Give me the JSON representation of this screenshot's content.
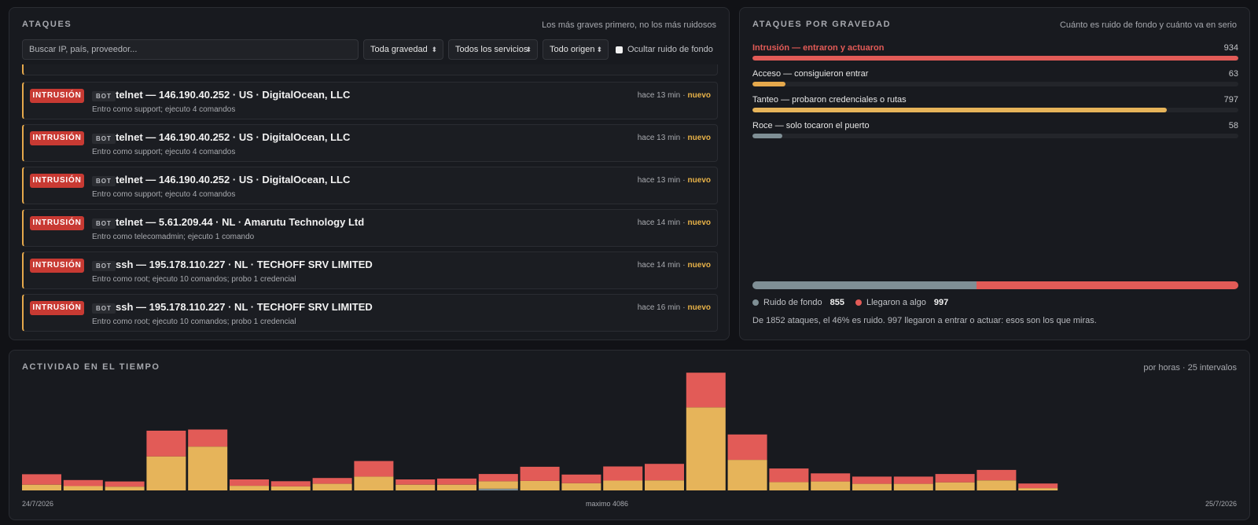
{
  "attacks": {
    "title": "ATAQUES",
    "subtitle": "Los más graves primero, no los más ruidosos",
    "search": {
      "placeholder": "Buscar IP, país, proveedor..."
    },
    "filters": {
      "severity": "Toda gravedad",
      "service": "Todos los servicios",
      "origin": "Todo origen",
      "hide_noise_label": "Ocultar ruido de fondo",
      "hide_noise_checked": false
    },
    "rows": [
      {
        "severity": "INTRUSIÓN",
        "tag": "BOT",
        "title": "telnet — 146.190.40.252 · US · DigitalOcean, LLC",
        "description": "Entro como support; ejecuto 4 comandos",
        "time": "hace 13 min",
        "status": "nuevo"
      },
      {
        "severity": "INTRUSIÓN",
        "tag": "BOT",
        "title": "telnet — 146.190.40.252 · US · DigitalOcean, LLC",
        "description": "Entro como support; ejecuto 4 comandos",
        "time": "hace 13 min",
        "status": "nuevo"
      },
      {
        "severity": "INTRUSIÓN",
        "tag": "BOT",
        "title": "telnet — 146.190.40.252 · US · DigitalOcean, LLC",
        "description": "Entro como support; ejecuto 4 comandos",
        "time": "hace 13 min",
        "status": "nuevo"
      },
      {
        "severity": "INTRUSIÓN",
        "tag": "BOT",
        "title": "telnet — 5.61.209.44 · NL · Amarutu Technology Ltd",
        "description": "Entro como telecomadmin; ejecuto 1 comando",
        "time": "hace 14 min",
        "status": "nuevo"
      },
      {
        "severity": "INTRUSIÓN",
        "tag": "BOT",
        "title": "ssh — 195.178.110.227 · NL · TECHOFF SRV LIMITED",
        "description": "Entro como root; ejecuto 10 comandos; probo 1 credencial",
        "time": "hace 14 min",
        "status": "nuevo"
      },
      {
        "severity": "INTRUSIÓN",
        "tag": "BOT",
        "title": "ssh — 195.178.110.227 · NL · TECHOFF SRV LIMITED",
        "description": "Entro como root; ejecuto 10 comandos; probo 1 credencial",
        "time": "hace 16 min",
        "status": "nuevo"
      }
    ]
  },
  "severity": {
    "title": "ATAQUES POR GRAVEDAD",
    "subtitle": "Cuánto es ruido de fondo y cuánto va en serio",
    "max": 934,
    "items": [
      {
        "label": "Intrusión — entraron y actuaron",
        "count": 934,
        "color": "#e25b57",
        "highlight": true
      },
      {
        "label": "Acceso — consiguieron entrar",
        "count": 63,
        "color": "#e6a94c",
        "highlight": false
      },
      {
        "label": "Tanteo — probaron credenciales o rutas",
        "count": 797,
        "color": "#e6b45a",
        "highlight": false
      },
      {
        "label": "Roce — solo tocaron el puerto",
        "count": 58,
        "color": "#7f8f95",
        "highlight": false
      }
    ],
    "split": {
      "noise_label": "Ruido de fondo",
      "noise_count": 855,
      "noise_color": "#7f8f95",
      "reached_label": "Llegaron a algo",
      "reached_count": 997,
      "reached_color": "#e25b57"
    },
    "summary": "De 1852 ataques, el 46% es ruido. 997 llegaron a entrar o actuar: esos son los que miras."
  },
  "activity": {
    "title": "ACTIVIDAD EN EL TIEMPO",
    "subtitle": "por horas · 25 intervalos",
    "start_label": "24/7/2026",
    "max_label": "maximo 4086",
    "end_label": "25/7/2026"
  },
  "chart_data": {
    "type": "bar",
    "stacked": true,
    "x": [
      1,
      2,
      3,
      4,
      5,
      6,
      7,
      8,
      9,
      10,
      11,
      12,
      13,
      14,
      15,
      16,
      17,
      18,
      19,
      20,
      21,
      22,
      23,
      24,
      25
    ],
    "ylim": [
      0,
      4086
    ],
    "series": [
      {
        "color": "#7f8f95",
        "values": [
          0,
          0,
          0,
          0,
          0,
          0,
          0,
          0,
          0,
          0,
          0,
          60,
          0,
          0,
          0,
          0,
          0,
          0,
          0,
          0,
          0,
          0,
          0,
          0,
          0
        ]
      },
      {
        "color": "#e6b45a",
        "values": [
          200,
          150,
          130,
          1180,
          1520,
          160,
          140,
          230,
          480,
          200,
          200,
          260,
          330,
          250,
          340,
          350,
          2880,
          1060,
          290,
          310,
          230,
          230,
          280,
          350,
          80
        ]
      },
      {
        "color": "#e25b57",
        "values": [
          360,
          210,
          180,
          890,
          590,
          220,
          180,
          200,
          540,
          180,
          210,
          250,
          490,
          300,
          490,
          570,
          1200,
          880,
          470,
          280,
          250,
          250,
          290,
          360,
          160
        ]
      }
    ]
  }
}
